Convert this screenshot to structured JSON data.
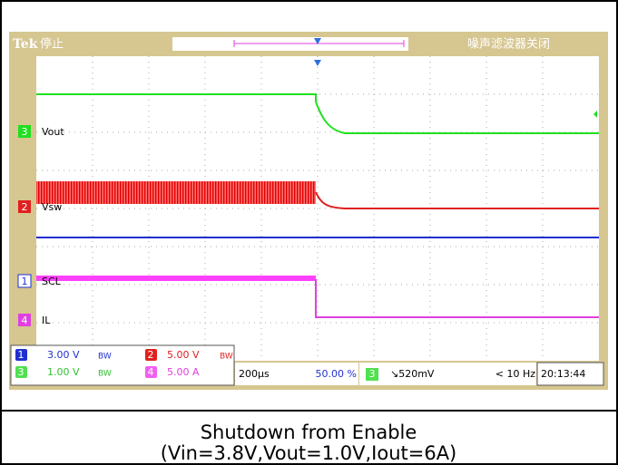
{
  "header": {
    "brand": "Tek",
    "status": "停止",
    "filter": "噪声滤波器关闭"
  },
  "channels": [
    {
      "number": "3",
      "label": "Vout"
    },
    {
      "number": "2",
      "label": "Vsw"
    },
    {
      "number": "1",
      "label": "SCL"
    },
    {
      "number": "4",
      "label": "IL"
    }
  ],
  "readout": {
    "ch1": {
      "number": "1",
      "scale": "3.00 V",
      "bw": "BW"
    },
    "ch2": {
      "number": "2",
      "scale": "5.00 V",
      "bw": "BW"
    },
    "ch3": {
      "number": "3",
      "scale": "1.00 V",
      "bw": "BW"
    },
    "ch4": {
      "number": "4",
      "scale": "5.00 A"
    },
    "timebase": "200µs",
    "trigger_position": "50.00 %",
    "trigger": {
      "source": "3",
      "level": "↘520mV"
    },
    "frequency": "< 10 Hz",
    "time": "20:13:44"
  },
  "caption": [
    "Shutdown from Enable",
    "(Vin=3.8V,Vout=1.0V,Iout=6A)"
  ]
}
